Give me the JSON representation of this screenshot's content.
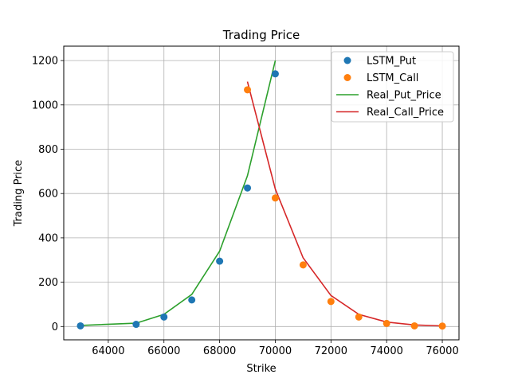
{
  "chart_data": {
    "type": "scatter",
    "title": "Trading Price",
    "xlabel": "Strike",
    "ylabel": "Trading Price",
    "xlim": [
      62400,
      76600
    ],
    "ylim": [
      -60,
      1265
    ],
    "xticks": [
      64000,
      66000,
      68000,
      70000,
      72000,
      74000,
      76000
    ],
    "yticks": [
      0,
      200,
      400,
      600,
      800,
      1000,
      1200
    ],
    "grid": true,
    "legend_position": "top-right",
    "series": [
      {
        "name": "LSTM_Put",
        "kind": "points",
        "color": "#1f77b4",
        "x": [
          63000,
          65000,
          66000,
          67000,
          68000,
          69000,
          70000
        ],
        "y": [
          3,
          10,
          43,
          120,
          295,
          625,
          1140
        ]
      },
      {
        "name": "LSTM_Call",
        "kind": "points",
        "color": "#ff7f0e",
        "x": [
          69000,
          70000,
          71000,
          72000,
          73000,
          74000,
          75000,
          76000
        ],
        "y": [
          1068,
          580,
          278,
          113,
          43,
          14,
          3,
          2
        ]
      },
      {
        "name": "Real_Put_Price",
        "kind": "line",
        "color": "#2ca02c",
        "x": [
          63000,
          65000,
          66000,
          67000,
          68000,
          69000,
          70000
        ],
        "y": [
          5,
          15,
          55,
          145,
          340,
          680,
          1200
        ]
      },
      {
        "name": "Real_Call_Price",
        "kind": "line",
        "color": "#d62728",
        "x": [
          69000,
          70000,
          71000,
          72000,
          73000,
          74000,
          75000,
          76000
        ],
        "y": [
          1105,
          620,
          310,
          140,
          55,
          20,
          7,
          3
        ]
      }
    ]
  }
}
